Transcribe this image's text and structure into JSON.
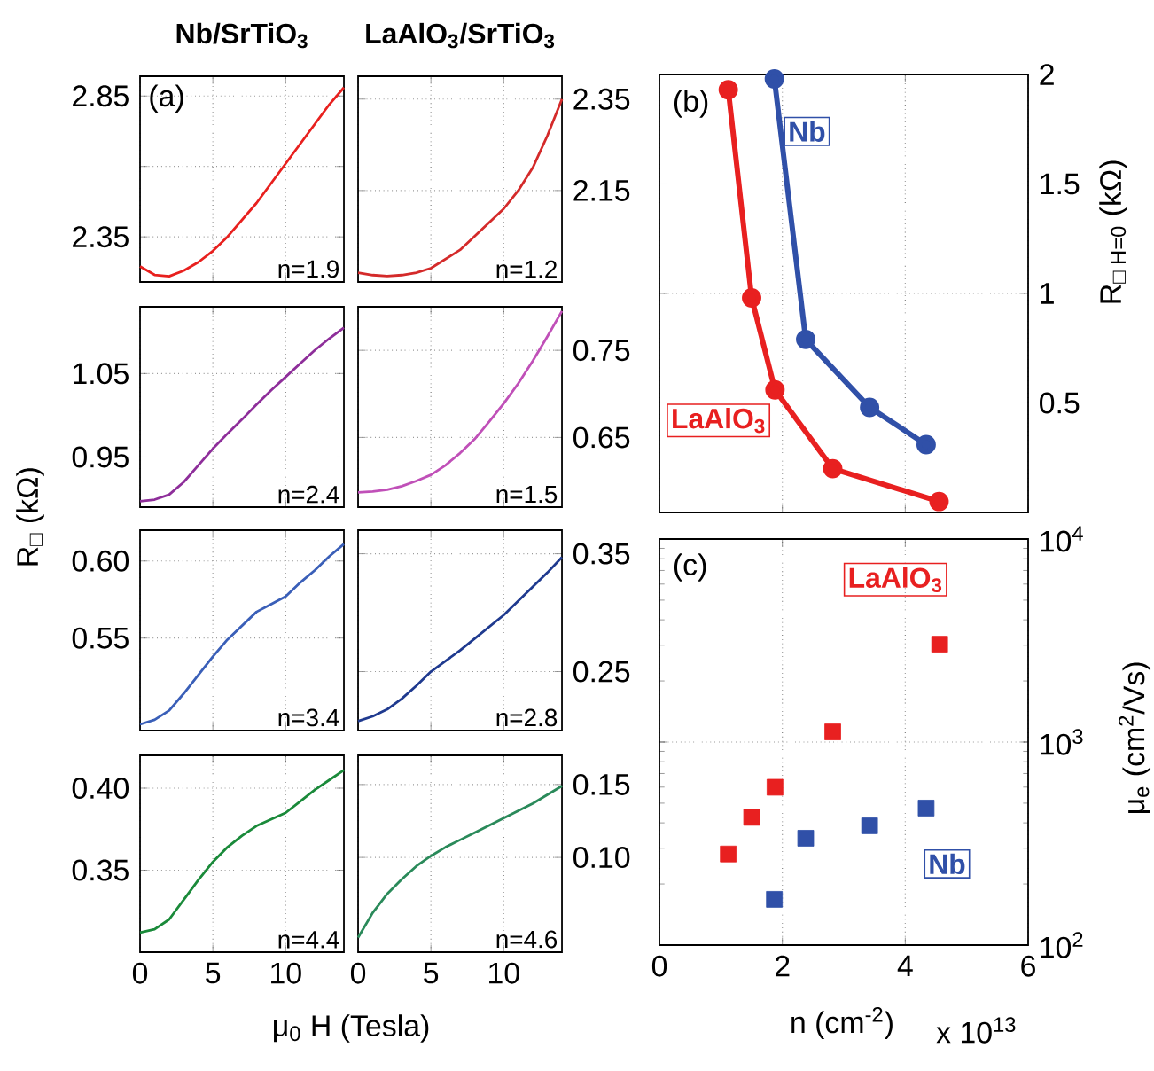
{
  "chart_data": [
    {
      "type": "line",
      "title": "Nb/SrTiO$_{3}$",
      "annotations": [
        "(a)",
        "n=1.9"
      ],
      "x": [
        0,
        1,
        2,
        3,
        4,
        5,
        6,
        7,
        8,
        9,
        10,
        11,
        12,
        13,
        14
      ],
      "xlim": [
        0,
        14
      ],
      "xticks": [
        0,
        5,
        10
      ],
      "ylim": [
        2.19,
        2.92
      ],
      "yticks": [
        2.35,
        {
          "value": 2.6,
          "label": null
        },
        2.85
      ],
      "grid": true,
      "tick_labels": "y",
      "series": [
        {
          "color": "#e8201e",
          "values": [
            2.245,
            2.215,
            2.21,
            2.23,
            2.26,
            2.3,
            2.35,
            2.41,
            2.47,
            2.54,
            2.61,
            2.68,
            2.75,
            2.82,
            2.88
          ]
        }
      ]
    },
    {
      "type": "line",
      "title": "LaAlO$_{3}$/SrTiO$_{3}$",
      "annotations": [
        "n=1.2"
      ],
      "x": [
        0,
        1,
        2,
        3,
        4,
        5,
        6,
        7,
        8,
        9,
        10,
        11,
        12,
        13,
        14
      ],
      "xlim": [
        0,
        14
      ],
      "xticks": [
        0,
        5,
        10
      ],
      "ylim": [
        1.95,
        2.4
      ],
      "yticks": [
        2.15,
        2.35
      ],
      "grid": true,
      "tick_labels": "y",
      "series": [
        {
          "color": "#d42a2a",
          "values": [
            1.97,
            1.965,
            1.963,
            1.965,
            1.97,
            1.98,
            2.0,
            2.02,
            2.05,
            2.08,
            2.11,
            2.15,
            2.2,
            2.27,
            2.35
          ]
        }
      ]
    },
    {
      "type": "line",
      "ylabel": "R$_{□}$ (kΩ)",
      "annotations": [
        "n=2.4"
      ],
      "x": [
        0,
        1,
        2,
        3,
        4,
        5,
        6,
        7,
        8,
        9,
        10,
        11,
        12,
        13,
        14
      ],
      "xlim": [
        0,
        14
      ],
      "xticks": [
        0,
        5,
        10
      ],
      "ylim": [
        0.89,
        1.13
      ],
      "yticks": [
        0.95,
        1.05
      ],
      "grid": true,
      "tick_labels": "y",
      "series": [
        {
          "color": "#8e2e9a",
          "values": [
            0.897,
            0.899,
            0.905,
            0.92,
            0.94,
            0.96,
            0.978,
            0.995,
            1.013,
            1.03,
            1.046,
            1.062,
            1.078,
            1.092,
            1.105
          ]
        }
      ]
    },
    {
      "type": "line",
      "annotations": [
        "n=1.5"
      ],
      "x": [
        0,
        1,
        2,
        3,
        4,
        5,
        6,
        7,
        8,
        9,
        10,
        11,
        12,
        13,
        14
      ],
      "xlim": [
        0,
        14
      ],
      "xticks": [
        0,
        5,
        10
      ],
      "ylim": [
        0.57,
        0.8
      ],
      "yticks": [
        0.65,
        0.75
      ],
      "grid": true,
      "tick_labels": "y",
      "series": [
        {
          "color": "#c050b8",
          "values": [
            0.587,
            0.588,
            0.59,
            0.594,
            0.6,
            0.607,
            0.618,
            0.632,
            0.648,
            0.668,
            0.689,
            0.712,
            0.738,
            0.766,
            0.795
          ]
        }
      ]
    },
    {
      "type": "line",
      "annotations": [
        "n=3.4"
      ],
      "x": [
        0,
        1,
        2,
        3,
        4,
        5,
        6,
        7,
        8,
        9,
        10,
        11,
        12,
        13,
        14
      ],
      "xlim": [
        0,
        14
      ],
      "xticks": [
        0,
        5,
        10
      ],
      "ylim": [
        0.49,
        0.62
      ],
      "yticks": [
        0.55,
        {
          "value": 0.6,
          "label": "0.60"
        }
      ],
      "grid": true,
      "tick_labels": "y",
      "series": [
        {
          "color": "#3a5fb8",
          "values": [
            0.494,
            0.497,
            0.503,
            0.514,
            0.526,
            0.538,
            0.549,
            0.558,
            0.567,
            0.572,
            0.577,
            0.586,
            0.594,
            0.603,
            0.611
          ]
        }
      ]
    },
    {
      "type": "line",
      "annotations": [
        "n=2.8"
      ],
      "x": [
        0,
        1,
        2,
        3,
        4,
        5,
        6,
        7,
        8,
        9,
        10,
        11,
        12,
        13,
        14
      ],
      "xlim": [
        0,
        14
      ],
      "xticks": [
        0,
        5,
        10
      ],
      "ylim": [
        0.2,
        0.37
      ],
      "yticks": [
        0.25,
        0.35
      ],
      "grid": true,
      "tick_labels": "y",
      "series": [
        {
          "color": "#1f3a8f",
          "values": [
            0.208,
            0.212,
            0.218,
            0.227,
            0.238,
            0.25,
            0.259,
            0.268,
            0.278,
            0.288,
            0.298,
            0.31,
            0.322,
            0.334,
            0.347
          ]
        }
      ]
    },
    {
      "type": "line",
      "xlabel": "μ$_{0}$ H (Tesla)",
      "annotations": [
        "n=4.4"
      ],
      "x": [
        0,
        1,
        2,
        3,
        4,
        5,
        6,
        7,
        8,
        9,
        10,
        11,
        12,
        13,
        14
      ],
      "xlim": [
        0,
        14
      ],
      "xticks": [
        0,
        5,
        10
      ],
      "ylim": [
        0.3,
        0.42
      ],
      "yticks": [
        0.35,
        {
          "value": 0.4,
          "label": "0.40"
        }
      ],
      "grid": true,
      "series": [
        {
          "color": "#1a8a3a",
          "values": [
            0.312,
            0.314,
            0.32,
            0.332,
            0.344,
            0.355,
            0.364,
            0.371,
            0.377,
            0.381,
            0.385,
            0.392,
            0.399,
            0.405,
            0.411
          ]
        }
      ]
    },
    {
      "type": "line",
      "annotations": [
        "n=4.6"
      ],
      "x": [
        0,
        1,
        2,
        3,
        4,
        5,
        6,
        7,
        8,
        9,
        10,
        11,
        12,
        13,
        14
      ],
      "xlim": [
        0,
        14
      ],
      "xticks": [
        0,
        5,
        10
      ],
      "ylim": [
        0.035,
        0.17
      ],
      "yticks": [
        {
          "value": 0.1,
          "label": "0.10"
        },
        0.15
      ],
      "grid": true,
      "series": [
        {
          "color": "#2a8a5a",
          "values": [
            0.045,
            0.062,
            0.075,
            0.085,
            0.094,
            0.101,
            0.107,
            0.112,
            0.117,
            0.122,
            0.127,
            0.132,
            0.137,
            0.143,
            0.149
          ]
        }
      ]
    },
    {
      "type": "line",
      "ylabel": "R$_{□ H=0}$ (kΩ)",
      "annotations": [
        "(b)"
      ],
      "xlim": [
        0,
        6
      ],
      "xticks": [
        0,
        2,
        4,
        6
      ],
      "ylim": [
        0,
        2
      ],
      "yticks": [
        0.5,
        1,
        1.5,
        2
      ],
      "grid": true,
      "tick_labels": "y",
      "marker": "circle",
      "series": [
        {
          "name": "LaAlO$_{3}$",
          "color": "#e82020",
          "x": [
            1.12,
            1.5,
            1.88,
            2.82,
            4.55
          ],
          "values": [
            1.93,
            0.98,
            0.56,
            0.2,
            0.05
          ]
        },
        {
          "name": "Nb",
          "color": "#3050a8",
          "x": [
            1.87,
            2.38,
            3.42,
            4.34
          ],
          "values": [
            1.98,
            0.79,
            0.48,
            0.31
          ]
        }
      ]
    },
    {
      "type": "scatter",
      "xlabel": "n (cm$^{-2}$)",
      "ylabel": "μ$_{e}$ (cm$^{2}$/Vs)",
      "annotations": [
        "(c)",
        "x 10$^{13}$"
      ],
      "xlim": [
        0,
        6
      ],
      "xticks": [
        0,
        2,
        4,
        6
      ],
      "ylim": [
        100,
        10000
      ],
      "yticks": [
        {
          "value": 100,
          "label": "10$^{2}$"
        },
        {
          "value": 1000,
          "label": "10$^{3}$"
        },
        {
          "value": 10000,
          "label": "10$^{4}$"
        }
      ],
      "log": "y",
      "grid": true,
      "marker": "square",
      "series": [
        {
          "name": "LaAlO$_{3}$",
          "color": "#e82020",
          "x": [
            1.12,
            1.5,
            1.88,
            2.82,
            4.56
          ],
          "values": [
            281,
            426,
            599,
            1122,
            3034
          ]
        },
        {
          "name": "Nb",
          "color": "#3050a8",
          "x": [
            1.87,
            2.38,
            3.42,
            4.34
          ],
          "values": [
            168,
            336,
            387,
            473
          ]
        }
      ]
    }
  ]
}
